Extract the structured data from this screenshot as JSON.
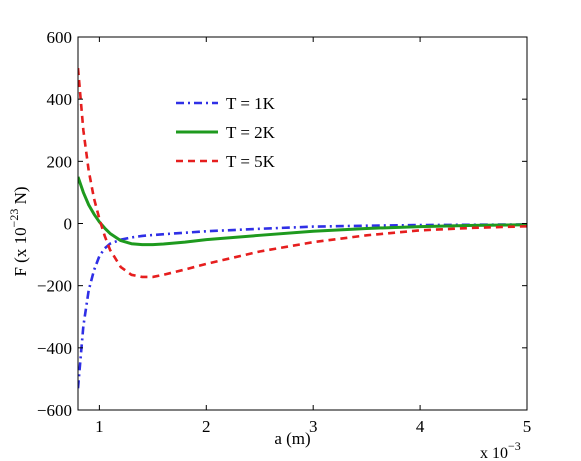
{
  "chart_data": {
    "type": "line",
    "title": "",
    "xlabel": "a (m)",
    "x_multiplier_label": "x 10",
    "x_multiplier_exp": "−3",
    "ylabel_prefix": "F  (x 10",
    "ylabel_exp": "−23",
    "ylabel_suffix": " N)",
    "xlim": [
      0.8,
      5
    ],
    "ylim": [
      -600,
      600
    ],
    "xticks": [
      1,
      2,
      3,
      4,
      5
    ],
    "xtick_labels": [
      "1",
      "2",
      "3",
      "4",
      "5"
    ],
    "yticks": [
      -600,
      -400,
      -200,
      0,
      200,
      400,
      600
    ],
    "ytick_labels": [
      "−600",
      "−400",
      "−200",
      "0",
      "200",
      "400",
      "600"
    ],
    "grid": false,
    "legend_position": "upper-center",
    "series": [
      {
        "name": "T = 1K",
        "color": "#2f2fe6",
        "dash": "dashdot",
        "x": [
          0.8,
          0.85,
          0.9,
          0.95,
          1.0,
          1.05,
          1.1,
          1.2,
          1.3,
          1.4,
          1.5,
          1.7,
          2.0,
          2.5,
          3.0,
          3.5,
          4.0,
          4.5,
          5.0
        ],
        "y": [
          -530,
          -330,
          -215,
          -150,
          -105,
          -80,
          -65,
          -52,
          -45,
          -40,
          -37,
          -32,
          -25,
          -17,
          -10,
          -7,
          -5,
          -4,
          -3
        ]
      },
      {
        "name": "T = 2K",
        "color": "#1e9a1e",
        "dash": "solid",
        "x": [
          0.8,
          0.85,
          0.9,
          0.95,
          1.0,
          1.05,
          1.1,
          1.2,
          1.3,
          1.4,
          1.5,
          1.6,
          1.8,
          2.0,
          2.5,
          3.0,
          3.5,
          4.0,
          4.5,
          5.0
        ],
        "y": [
          150,
          100,
          60,
          30,
          5,
          -15,
          -32,
          -55,
          -65,
          -68,
          -68,
          -66,
          -60,
          -52,
          -38,
          -25,
          -16,
          -10,
          -6,
          -4
        ]
      },
      {
        "name": "T = 5K",
        "color": "#e61e1e",
        "dash": "dashed",
        "x": [
          0.8,
          0.85,
          0.9,
          0.95,
          1.0,
          1.05,
          1.1,
          1.2,
          1.3,
          1.4,
          1.5,
          1.6,
          1.8,
          2.0,
          2.5,
          3.0,
          3.5,
          4.0,
          4.5,
          5.0
        ],
        "y": [
          500,
          300,
          170,
          80,
          15,
          -40,
          -85,
          -140,
          -165,
          -172,
          -172,
          -165,
          -148,
          -130,
          -90,
          -60,
          -38,
          -22,
          -14,
          -9
        ]
      }
    ]
  }
}
